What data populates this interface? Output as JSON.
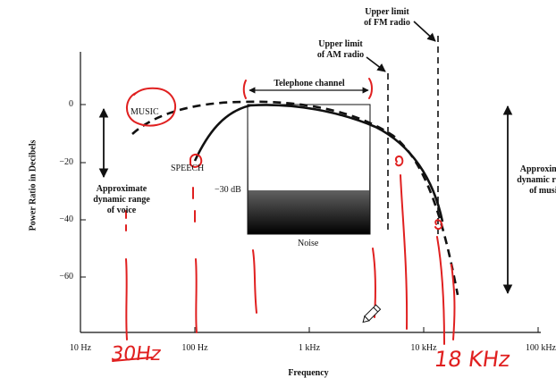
{
  "y_axis": {
    "label": "Power Ratio in Decibels",
    "ticks": [
      "0",
      "−20",
      "−40",
      "−60"
    ]
  },
  "x_axis": {
    "label": "Frequency",
    "ticks": [
      "10 Hz",
      "100 Hz",
      "1 kHz",
      "10 kHz",
      "100 kHz"
    ]
  },
  "annotations": {
    "upper_fm": "Upper limit\nof FM radio",
    "upper_am": "Upper limit\nof AM radio",
    "telephone": "Telephone channel",
    "music": "MUSIC",
    "speech": "SPEECH",
    "voice_range": "Approximate\ndynamic range\nof voice",
    "music_range": "Approximate\ndynamic range\nof music",
    "minus30": "−30 dB",
    "noise": "Noise"
  },
  "handwriting": {
    "left": "30Hz",
    "right": "18 KHz"
  },
  "colors": {
    "ink": "#111111",
    "handwriting": "#e02020"
  }
}
